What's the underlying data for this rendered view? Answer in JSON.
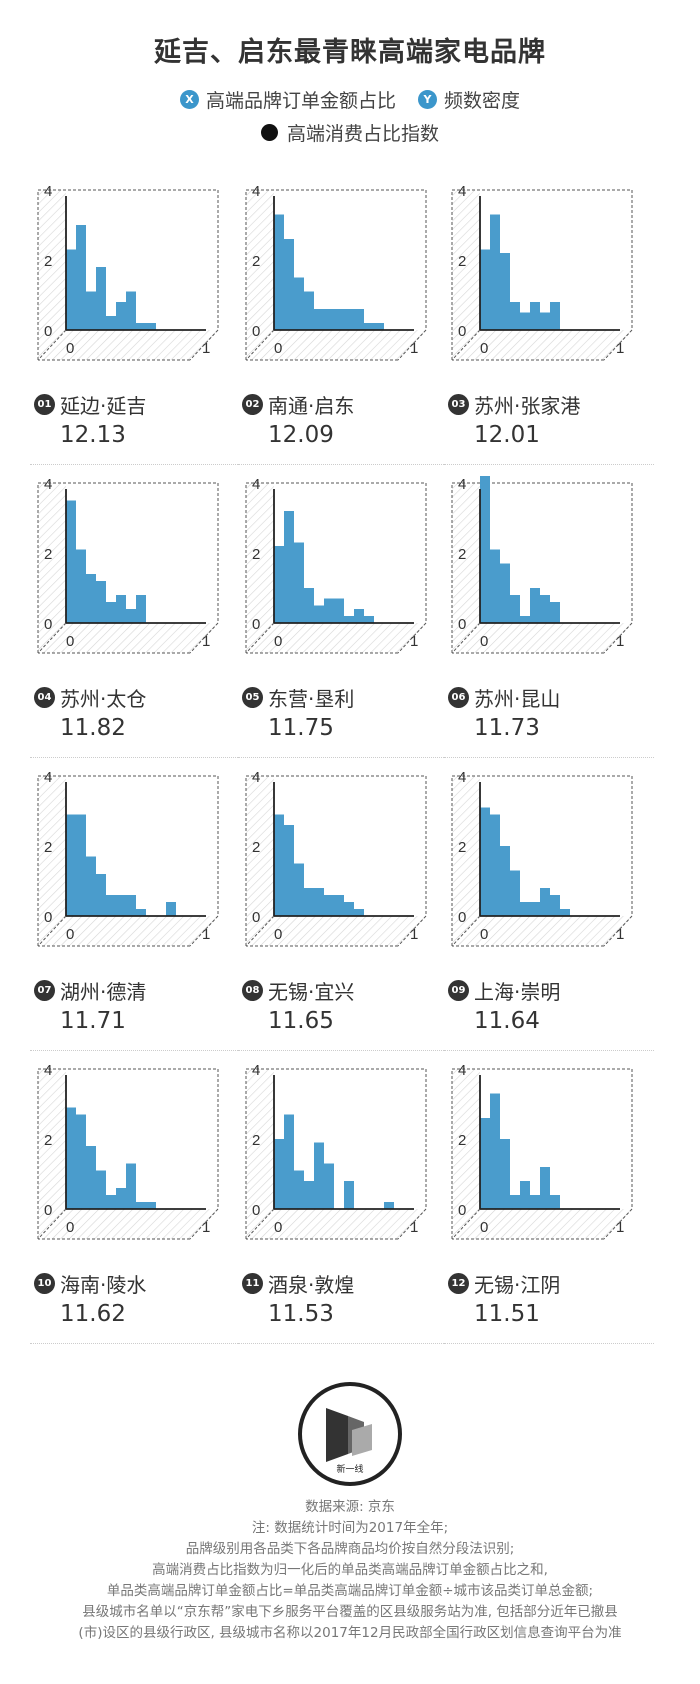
{
  "title": "延吉、启东最青睐高端家电品牌",
  "legend": {
    "x_badge": "X",
    "x_label": "高端品牌订单金额占比",
    "y_badge": "Y",
    "y_label": "频数密度",
    "dot_label": "高端消费占比指数"
  },
  "colors": {
    "bar": "#4a9ccc",
    "badge": "#3b96cb",
    "text": "#333333"
  },
  "chart_data": [
    {
      "type": "bar",
      "rank": "01",
      "city": "延边·延吉",
      "value": "12.13",
      "xlim": [
        0,
        1
      ],
      "ylim": [
        0,
        4
      ],
      "yticks": [
        "0",
        "2",
        "4"
      ],
      "xticks": [
        "0",
        "1"
      ],
      "bin_width": 0.0714,
      "values": [
        2.3,
        3.0,
        1.1,
        1.8,
        0.4,
        0.8,
        1.1,
        0.2,
        0.2
      ]
    },
    {
      "type": "bar",
      "rank": "02",
      "city": "南通·启东",
      "value": "12.09",
      "xlim": [
        0,
        1
      ],
      "ylim": [
        0,
        4
      ],
      "yticks": [
        "0",
        "2",
        "4"
      ],
      "xticks": [
        "0",
        "1"
      ],
      "bin_width": 0.0714,
      "values": [
        3.3,
        2.6,
        1.5,
        1.1,
        0.6,
        0.6,
        0.6,
        0.6,
        0.6,
        0.2,
        0.2
      ]
    },
    {
      "type": "bar",
      "rank": "03",
      "city": "苏州·张家港",
      "value": "12.01",
      "xlim": [
        0,
        1
      ],
      "ylim": [
        0,
        4
      ],
      "yticks": [
        "0",
        "2",
        "4"
      ],
      "xticks": [
        "0",
        "1"
      ],
      "bin_width": 0.0714,
      "values": [
        2.3,
        3.3,
        2.2,
        0.8,
        0.5,
        0.8,
        0.5,
        0.8
      ]
    },
    {
      "type": "bar",
      "rank": "04",
      "city": "苏州·太仓",
      "value": "11.82",
      "xlim": [
        0,
        1
      ],
      "ylim": [
        0,
        4
      ],
      "yticks": [
        "0",
        "2",
        "4"
      ],
      "xticks": [
        "0",
        "1"
      ],
      "bin_width": 0.0714,
      "values": [
        3.5,
        2.1,
        1.4,
        1.2,
        0.6,
        0.8,
        0.4,
        0.8
      ]
    },
    {
      "type": "bar",
      "rank": "05",
      "city": "东营·垦利",
      "value": "11.75",
      "xlim": [
        0,
        1
      ],
      "ylim": [
        0,
        4
      ],
      "yticks": [
        "0",
        "2",
        "4"
      ],
      "xticks": [
        "0",
        "1"
      ],
      "bin_width": 0.0714,
      "values": [
        2.2,
        3.2,
        2.3,
        1.0,
        0.5,
        0.7,
        0.7,
        0.2,
        0.4,
        0.2
      ]
    },
    {
      "type": "bar",
      "rank": "06",
      "city": "苏州·昆山",
      "value": "11.73",
      "xlim": [
        0,
        1
      ],
      "ylim": [
        0,
        4
      ],
      "yticks": [
        "0",
        "2",
        "4"
      ],
      "xticks": [
        "0",
        "1"
      ],
      "bin_width": 0.0714,
      "values": [
        4.2,
        2.1,
        1.7,
        0.8,
        0.2,
        1.0,
        0.8,
        0.6
      ]
    },
    {
      "type": "bar",
      "rank": "07",
      "city": "湖州·德清",
      "value": "11.71",
      "xlim": [
        0,
        1
      ],
      "ylim": [
        0,
        4
      ],
      "yticks": [
        "0",
        "2",
        "4"
      ],
      "xticks": [
        "0",
        "1"
      ],
      "bin_width": 0.0714,
      "values": [
        2.9,
        2.9,
        1.7,
        1.2,
        0.6,
        0.6,
        0.6,
        0.2,
        0.0,
        0.0,
        0.4
      ]
    },
    {
      "type": "bar",
      "rank": "08",
      "city": "无锡·宜兴",
      "value": "11.65",
      "xlim": [
        0,
        1
      ],
      "ylim": [
        0,
        4
      ],
      "yticks": [
        "0",
        "2",
        "4"
      ],
      "xticks": [
        "0",
        "1"
      ],
      "bin_width": 0.0714,
      "values": [
        2.9,
        2.6,
        1.5,
        0.8,
        0.8,
        0.6,
        0.6,
        0.4,
        0.2
      ]
    },
    {
      "type": "bar",
      "rank": "09",
      "city": "上海·崇明",
      "value": "11.64",
      "xlim": [
        0,
        1
      ],
      "ylim": [
        0,
        4
      ],
      "yticks": [
        "0",
        "2",
        "4"
      ],
      "xticks": [
        "0",
        "1"
      ],
      "bin_width": 0.0714,
      "values": [
        3.1,
        2.9,
        2.0,
        1.3,
        0.4,
        0.4,
        0.8,
        0.6,
        0.2
      ]
    },
    {
      "type": "bar",
      "rank": "10",
      "city": "海南·陵水",
      "value": "11.62",
      "xlim": [
        0,
        1
      ],
      "ylim": [
        0,
        4
      ],
      "yticks": [
        "0",
        "2",
        "4"
      ],
      "xticks": [
        "0",
        "1"
      ],
      "bin_width": 0.0714,
      "values": [
        2.9,
        2.7,
        1.8,
        1.1,
        0.4,
        0.6,
        1.3,
        0.2,
        0.2
      ]
    },
    {
      "type": "bar",
      "rank": "11",
      "city": "酒泉·敦煌",
      "value": "11.53",
      "xlim": [
        0,
        1
      ],
      "ylim": [
        0,
        4
      ],
      "yticks": [
        "0",
        "2",
        "4"
      ],
      "xticks": [
        "0",
        "1"
      ],
      "bin_width": 0.0714,
      "values": [
        2.0,
        2.7,
        1.1,
        0.8,
        1.9,
        1.3,
        0.0,
        0.8,
        0.0,
        0.0,
        0.0,
        0.2
      ]
    },
    {
      "type": "bar",
      "rank": "12",
      "city": "无锡·江阴",
      "value": "11.51",
      "xlim": [
        0,
        1
      ],
      "ylim": [
        0,
        4
      ],
      "yticks": [
        "0",
        "2",
        "4"
      ],
      "xticks": [
        "0",
        "1"
      ],
      "bin_width": 0.0714,
      "values": [
        2.6,
        3.3,
        2.0,
        0.4,
        0.8,
        0.4,
        1.2,
        0.4
      ]
    }
  ],
  "logo": {
    "text": "新一线"
  },
  "notes": [
    "数据来源: 京东",
    "注: 数据统计时间为2017年全年;",
    "品牌级别用各品类下各品牌商品均价按自然分段法识别;",
    "高端消费占比指数为归一化后的单品类高端品牌订单金额占比之和,",
    "单品类高端品牌订单金额占比=单品类高端品牌订单金额÷城市该品类订单总金额;",
    "县级城市名单以“京东帮”家电下乡服务平台覆盖的区县级服务站为准, 包括部分近年已撤县",
    "(市)设区的县级行政区, 县级城市名称以2017年12月民政部全国行政区划信息查询平台为准"
  ]
}
